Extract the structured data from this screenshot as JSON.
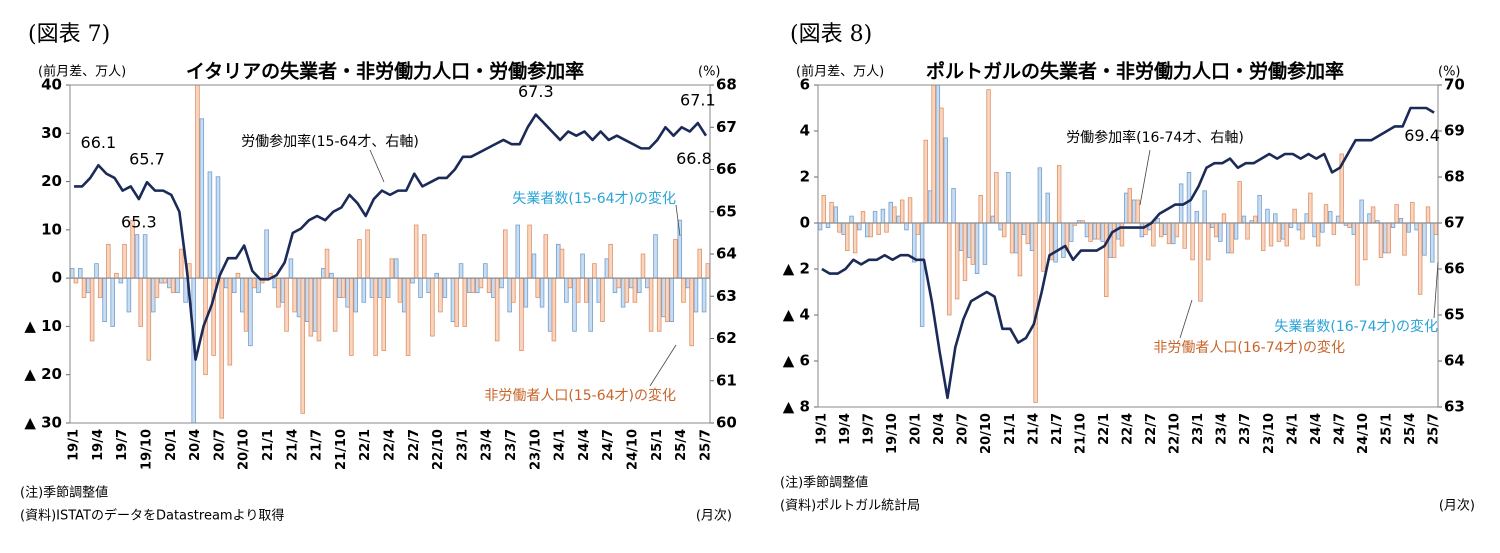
{
  "chart_data": [
    {
      "type": "combo",
      "figure_label": "(図表 7)",
      "title": "イタリアの失業者・非労働力人口・労働参加率",
      "y_label": "(前月差、万人)",
      "y2_label": "(%)",
      "notes": [
        "(注)季節調整値",
        "(資料)ISTATのデータをDatastreamより取得"
      ],
      "x_unit": "(月次)",
      "categories": [
        "19/1",
        null,
        null,
        "19/4",
        null,
        null,
        "19/7",
        null,
        null,
        "19/10",
        null,
        null,
        "20/1",
        null,
        null,
        "20/4",
        null,
        null,
        "20/7",
        null,
        null,
        "20/10",
        null,
        null,
        "21/1",
        null,
        null,
        "21/4",
        null,
        null,
        "21/7",
        null,
        null,
        "21/10",
        null,
        null,
        "22/1",
        null,
        null,
        "22/4",
        null,
        null,
        "22/7",
        null,
        null,
        "22/10",
        null,
        null,
        "23/1",
        null,
        null,
        "23/4",
        null,
        null,
        "23/7",
        null,
        null,
        "23/10",
        null,
        null,
        "24/1",
        null,
        null,
        "24/4",
        null,
        null,
        "24/7",
        null,
        null,
        "24/10",
        null,
        null,
        "25/1",
        null,
        null,
        "25/4",
        null,
        null,
        "25/7"
      ],
      "ylim": [
        -30,
        40
      ],
      "yticks": [
        40,
        30,
        20,
        10,
        0,
        {
          "value": -10,
          "label": "▲ 10"
        },
        {
          "value": -20,
          "label": "▲ 20"
        },
        {
          "value": -30,
          "label": "▲ 30"
        }
      ],
      "y2lim": [
        60,
        68
      ],
      "y2ticks": [
        60,
        61,
        62,
        63,
        64,
        65,
        66,
        67,
        68
      ],
      "grid": false,
      "series": [
        {
          "name": "失業者数(15-64才)の変化",
          "color": "#cadcf0",
          "edgecolor": "#6f9fd1",
          "values": [
            2,
            2,
            -3,
            3,
            -9,
            -10,
            -1,
            -7,
            9,
            9,
            -7,
            -1,
            -2,
            -3,
            -5,
            -45,
            33,
            22,
            21,
            -2,
            -3,
            -7,
            -14,
            -3,
            10,
            -2,
            -5,
            4,
            -8,
            -9,
            -11,
            2,
            1,
            -4,
            -6,
            -7,
            -5,
            -4,
            -4,
            -4,
            4,
            -7,
            -1,
            -4,
            -3,
            1,
            -4,
            -9,
            3,
            -3,
            -3,
            3,
            -4,
            -2,
            -7,
            11,
            -6,
            5,
            -6,
            -11,
            7,
            -5,
            -11,
            5,
            -11,
            -5,
            4,
            -3,
            -6,
            -2,
            -3,
            -2,
            9,
            -8,
            -9,
            12,
            -2,
            -7,
            -7
          ]
        },
        {
          "name": "非労働者人口(15-64才)の変化",
          "color": "#f9d4c0",
          "edgecolor": "#de9366",
          "values": [
            -1,
            -4,
            -13,
            -4,
            7,
            1,
            7,
            12,
            -10,
            -17,
            -4,
            -1,
            -3,
            6,
            3,
            50,
            -20,
            -16,
            -29,
            -18,
            1,
            -11,
            -2,
            -1,
            1,
            -6,
            -11,
            -7,
            -28,
            -12,
            -13,
            6,
            -11,
            -4,
            -16,
            8,
            10,
            -16,
            -15,
            4,
            -5,
            -16,
            11,
            9,
            -12,
            -7,
            0,
            -10,
            -10,
            -3,
            -2,
            -3,
            -13,
            10,
            -5,
            -15,
            11,
            -4,
            9,
            -13,
            6,
            -2,
            -5,
            -5,
            3,
            -9,
            7,
            -2,
            -5,
            -5,
            5,
            -11,
            -11,
            -9,
            8,
            -5,
            -14,
            6,
            3
          ]
        },
        {
          "name": "労働参加率(15-64才、右軸)",
          "color": "#1b2a57",
          "axis": "y2",
          "values": [
            65.6,
            65.6,
            65.8,
            66.1,
            65.9,
            65.8,
            65.5,
            65.6,
            65.3,
            65.7,
            65.5,
            65.5,
            65.4,
            65.0,
            63.5,
            61.5,
            62.3,
            62.8,
            63.5,
            63.9,
            63.9,
            64.2,
            63.6,
            63.4,
            63.4,
            63.5,
            63.8,
            64.5,
            64.6,
            64.8,
            64.9,
            64.8,
            65.0,
            65.1,
            65.4,
            65.2,
            64.9,
            65.3,
            65.5,
            65.4,
            65.5,
            65.5,
            65.9,
            65.6,
            65.7,
            65.8,
            65.8,
            66.0,
            66.3,
            66.3,
            66.4,
            66.5,
            66.6,
            66.7,
            66.6,
            66.6,
            67.0,
            67.3,
            67.1,
            66.9,
            66.7,
            66.9,
            66.8,
            66.9,
            66.7,
            66.9,
            66.7,
            66.8,
            66.7,
            66.6,
            66.5,
            66.5,
            66.7,
            67.0,
            66.8,
            67.0,
            66.9,
            67.1,
            66.8
          ],
          "value_labels": [
            null,
            null,
            null,
            "66.1",
            null,
            null,
            null,
            null,
            "65.3",
            "65.7",
            null,
            null,
            null,
            null,
            null,
            null,
            null,
            null,
            null,
            null,
            null,
            null,
            null,
            null,
            null,
            null,
            null,
            null,
            null,
            null,
            null,
            null,
            null,
            null,
            null,
            null,
            null,
            null,
            null,
            null,
            null,
            null,
            null,
            null,
            null,
            null,
            null,
            null,
            null,
            null,
            null,
            null,
            null,
            null,
            null,
            null,
            null,
            "67.3",
            null,
            null,
            null,
            null,
            null,
            null,
            null,
            null,
            null,
            null,
            null,
            null,
            null,
            null,
            null,
            null,
            null,
            null,
            null,
            "67.1",
            "66.8"
          ]
        }
      ]
    },
    {
      "type": "combo",
      "figure_label": "(図表 8)",
      "title": "ポルトガルの失業者・非労働力人口・労働参加率",
      "y_label": "(前月差、万人)",
      "y2_label": "(%)",
      "notes": [
        "(注)季節調整値",
        "(資料)ポルトガル統計局"
      ],
      "x_unit": "(月次)",
      "categories": [
        "19/1",
        null,
        null,
        "19/4",
        null,
        null,
        "19/7",
        null,
        null,
        "19/10",
        null,
        null,
        "20/1",
        null,
        null,
        "20/4",
        null,
        null,
        "20/7",
        null,
        null,
        "20/10",
        null,
        null,
        "21/1",
        null,
        null,
        "21/4",
        null,
        null,
        "21/7",
        null,
        null,
        "21/10",
        null,
        null,
        "22/1",
        null,
        null,
        "22/4",
        null,
        null,
        "22/7",
        null,
        null,
        "22/10",
        null,
        null,
        "23/1",
        null,
        null,
        "23/4",
        null,
        null,
        "23/7",
        null,
        null,
        "23/10",
        null,
        null,
        "24/1",
        null,
        null,
        "24/4",
        null,
        null,
        "24/7",
        null,
        null,
        "24/10",
        null,
        null,
        "25/1",
        null,
        null,
        "25/4",
        null,
        null,
        "25/7"
      ],
      "ylim": [
        -8,
        6
      ],
      "yticks": [
        6,
        4,
        2,
        0,
        {
          "value": -2,
          "label": "▲ 2"
        },
        {
          "value": -4,
          "label": "▲ 4"
        },
        {
          "value": -6,
          "label": "▲ 6"
        },
        {
          "value": -8,
          "label": "▲ 8"
        }
      ],
      "y2lim": [
        63,
        70
      ],
      "y2ticks": [
        63,
        64,
        65,
        66,
        67,
        68,
        69,
        70
      ],
      "grid": false,
      "series": [
        {
          "name": "失業者数(16-74才)の変化",
          "color": "#cadcf0",
          "edgecolor": "#6f9fd1",
          "values": [
            -0.3,
            -0.2,
            0.7,
            -0.5,
            0.3,
            -0.3,
            -0.6,
            0.5,
            0.6,
            0.9,
            0.3,
            -0.3,
            -1.7,
            -4.5,
            1.4,
            6.5,
            3.7,
            1.5,
            -1.2,
            -1.5,
            -2.2,
            -1.8,
            0.3,
            -0.3,
            2.2,
            -1.3,
            -0.5,
            -1.2,
            2.4,
            1.3,
            -1.7,
            -1.5,
            -0.8,
            0.1,
            -0.6,
            -0.7,
            -0.8,
            -1.5,
            -0.7,
            1.3,
            1.0,
            -0.6,
            -0.3,
            0.2,
            -0.5,
            -0.9,
            1.7,
            2.2,
            0.5,
            1.4,
            -0.2,
            -0.8,
            -1.3,
            -0.7,
            0.3,
            0.1,
            1.2,
            0.6,
            0.4,
            -0.7,
            -0.2,
            -0.3,
            0.4,
            -0.6,
            -0.4,
            0.5,
            0.3,
            -0.1,
            -0.5,
            1.0,
            0.4,
            0.1,
            -1.3,
            -0.2,
            0.2,
            -0.4,
            -0.3,
            -1.4,
            -1.7
          ]
        },
        {
          "name": "非労働者人口(16-74才)の変化",
          "color": "#f9d4c0",
          "edgecolor": "#de9366",
          "values": [
            1.2,
            0.9,
            -0.4,
            -1.2,
            -1.3,
            0.5,
            -0.6,
            -0.5,
            -0.4,
            0.7,
            1.0,
            1.1,
            -0.5,
            3.6,
            7.0,
            5.0,
            -4.0,
            -3.3,
            -2.5,
            -1.8,
            1.2,
            5.8,
            2.2,
            -0.6,
            -1.3,
            -2.3,
            -0.9,
            -7.8,
            -2.1,
            -1.6,
            2.5,
            -1.2,
            -0.1,
            0.1,
            -0.8,
            -0.7,
            -3.2,
            -1.5,
            -1.0,
            1.5,
            1.0,
            -0.5,
            -1.0,
            -0.6,
            -0.9,
            -0.6,
            -1.1,
            -1.6,
            -3.4,
            -1.6,
            -0.6,
            0.4,
            -1.3,
            1.8,
            -0.7,
            0.3,
            -1.2,
            -1.0,
            -0.8,
            -1.0,
            0.6,
            -0.7,
            1.3,
            -1.0,
            0.8,
            -0.5,
            3.0,
            -0.2,
            -2.7,
            -1.6,
            0.7,
            -1.5,
            -1.3,
            0.8,
            -1.4,
            0.9,
            -3.1,
            0.7,
            -0.5
          ]
        },
        {
          "name": "労働参加率(16-74才、右軸)",
          "color": "#1b2a57",
          "axis": "y2",
          "values": [
            66.0,
            65.9,
            65.9,
            66.0,
            66.2,
            66.1,
            66.2,
            66.2,
            66.3,
            66.2,
            66.3,
            66.3,
            66.2,
            66.2,
            65.3,
            64.2,
            63.2,
            64.3,
            64.9,
            65.3,
            65.4,
            65.5,
            65.4,
            64.7,
            64.7,
            64.4,
            64.5,
            64.8,
            65.5,
            66.3,
            66.4,
            66.5,
            66.2,
            66.4,
            66.4,
            66.4,
            66.5,
            66.8,
            66.9,
            66.9,
            66.9,
            66.9,
            67.0,
            67.2,
            67.3,
            67.4,
            67.4,
            67.5,
            67.8,
            68.2,
            68.3,
            68.3,
            68.4,
            68.2,
            68.3,
            68.3,
            68.4,
            68.5,
            68.4,
            68.5,
            68.5,
            68.4,
            68.5,
            68.4,
            68.5,
            68.1,
            68.2,
            68.5,
            68.8,
            68.8,
            68.8,
            68.9,
            69.0,
            69.1,
            69.1,
            69.5,
            69.5,
            69.5,
            69.4
          ],
          "value_labels": [
            null,
            null,
            null,
            null,
            null,
            null,
            null,
            null,
            null,
            null,
            null,
            null,
            null,
            null,
            null,
            null,
            null,
            null,
            null,
            null,
            null,
            null,
            null,
            null,
            null,
            null,
            null,
            null,
            null,
            null,
            null,
            null,
            null,
            null,
            null,
            null,
            null,
            null,
            null,
            null,
            null,
            null,
            null,
            null,
            null,
            null,
            null,
            null,
            null,
            null,
            null,
            null,
            null,
            null,
            null,
            null,
            null,
            null,
            null,
            null,
            null,
            null,
            null,
            null,
            null,
            null,
            null,
            null,
            null,
            null,
            null,
            null,
            null,
            null,
            null,
            null,
            null,
            null,
            "69.4"
          ]
        }
      ]
    }
  ]
}
